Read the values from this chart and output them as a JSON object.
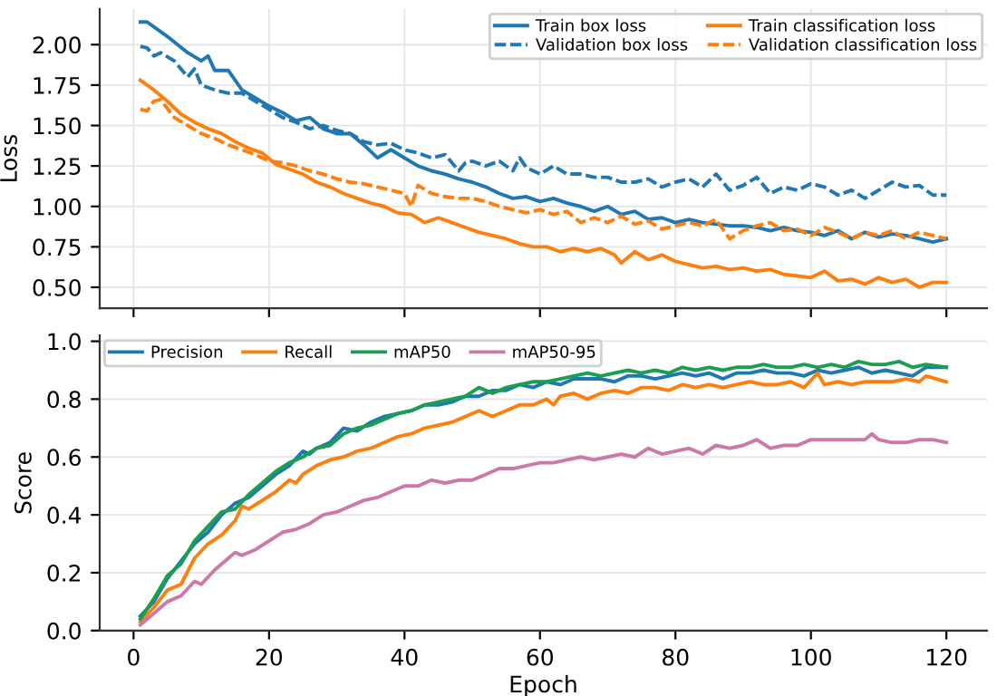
{
  "chart_data": [
    {
      "type": "line",
      "ylabel": "Loss",
      "xlim": [
        -5,
        126
      ],
      "xticks": [
        0,
        20,
        40,
        60,
        80,
        100,
        120
      ],
      "ylim": [
        0.37,
        2.22
      ],
      "yticks": [
        {
          "value": 0.5,
          "label": "0.50"
        },
        {
          "value": 0.75,
          "label": "0.75"
        },
        {
          "value": 1.0,
          "label": "1.00"
        },
        {
          "value": 1.25,
          "label": "1.25"
        },
        {
          "value": 1.5,
          "label": "1.50"
        },
        {
          "value": 1.75,
          "label": "1.75"
        },
        {
          "value": 2.0,
          "label": "2.00"
        }
      ],
      "tick_labels": "y",
      "grid": true,
      "legend": "top right",
      "series": [
        {
          "name": "Train box loss",
          "color": "#1f77b4",
          "line_style": "solid",
          "x": [
            1,
            2,
            5,
            8,
            10,
            11,
            12,
            14,
            16,
            20,
            22,
            24,
            26,
            28,
            30,
            32,
            34,
            36,
            38,
            40,
            42,
            44,
            46,
            48,
            50,
            52,
            54,
            56,
            58,
            60,
            62,
            64,
            66,
            68,
            70,
            72,
            74,
            76,
            78,
            80,
            82,
            84,
            86,
            88,
            90,
            92,
            94,
            96,
            98,
            100,
            102,
            104,
            106,
            108,
            110,
            112,
            114,
            116,
            118,
            120
          ],
          "values": [
            2.14,
            2.14,
            2.05,
            1.95,
            1.9,
            1.93,
            1.84,
            1.84,
            1.72,
            1.62,
            1.58,
            1.53,
            1.55,
            1.48,
            1.45,
            1.45,
            1.38,
            1.3,
            1.35,
            1.3,
            1.25,
            1.22,
            1.2,
            1.17,
            1.15,
            1.12,
            1.08,
            1.05,
            1.06,
            1.03,
            1.05,
            1.02,
            1.0,
            0.97,
            1.0,
            0.95,
            0.97,
            0.92,
            0.93,
            0.9,
            0.92,
            0.9,
            0.89,
            0.88,
            0.88,
            0.87,
            0.85,
            0.87,
            0.85,
            0.84,
            0.82,
            0.85,
            0.8,
            0.84,
            0.81,
            0.83,
            0.82,
            0.8,
            0.78,
            0.8
          ]
        },
        {
          "name": "Validation box loss",
          "color": "#1f77b4",
          "line_style": "dashed",
          "x": [
            1,
            2,
            3,
            4,
            6,
            8,
            9,
            10,
            12,
            14,
            16,
            18,
            20,
            22,
            24,
            26,
            28,
            30,
            32,
            34,
            36,
            38,
            40,
            42,
            44,
            46,
            48,
            49,
            50,
            52,
            54,
            56,
            57,
            58,
            60,
            62,
            64,
            66,
            68,
            70,
            72,
            74,
            76,
            78,
            80,
            82,
            84,
            86,
            88,
            90,
            92,
            94,
            96,
            98,
            100,
            102,
            104,
            106,
            108,
            110,
            112,
            114,
            116,
            118,
            120
          ],
          "values": [
            1.99,
            1.98,
            1.93,
            1.95,
            1.9,
            1.8,
            1.85,
            1.75,
            1.72,
            1.7,
            1.7,
            1.65,
            1.6,
            1.55,
            1.52,
            1.48,
            1.5,
            1.47,
            1.45,
            1.4,
            1.38,
            1.39,
            1.35,
            1.33,
            1.3,
            1.32,
            1.22,
            1.27,
            1.28,
            1.25,
            1.28,
            1.22,
            1.3,
            1.24,
            1.2,
            1.25,
            1.2,
            1.2,
            1.18,
            1.18,
            1.15,
            1.15,
            1.17,
            1.12,
            1.15,
            1.17,
            1.12,
            1.2,
            1.1,
            1.13,
            1.18,
            1.08,
            1.12,
            1.1,
            1.14,
            1.12,
            1.07,
            1.1,
            1.05,
            1.1,
            1.15,
            1.12,
            1.13,
            1.07,
            1.07
          ]
        },
        {
          "name": "Train classification loss",
          "color": "#ff7f0e",
          "line_style": "solid",
          "x": [
            1,
            3,
            5,
            7,
            9,
            11,
            13,
            15,
            17,
            19,
            21,
            23,
            25,
            27,
            29,
            31,
            33,
            35,
            37,
            39,
            41,
            43,
            45,
            47,
            49,
            51,
            53,
            55,
            57,
            59,
            61,
            63,
            65,
            67,
            69,
            71,
            72,
            74,
            76,
            78,
            80,
            82,
            84,
            86,
            88,
            90,
            92,
            94,
            96,
            98,
            100,
            102,
            104,
            106,
            108,
            110,
            112,
            114,
            116,
            118,
            120
          ],
          "values": [
            1.78,
            1.72,
            1.65,
            1.57,
            1.52,
            1.48,
            1.45,
            1.4,
            1.36,
            1.33,
            1.26,
            1.23,
            1.2,
            1.15,
            1.12,
            1.08,
            1.05,
            1.02,
            1.0,
            0.96,
            0.95,
            0.9,
            0.93,
            0.9,
            0.87,
            0.84,
            0.82,
            0.8,
            0.77,
            0.75,
            0.75,
            0.72,
            0.74,
            0.72,
            0.74,
            0.7,
            0.65,
            0.72,
            0.67,
            0.7,
            0.66,
            0.64,
            0.62,
            0.63,
            0.61,
            0.62,
            0.6,
            0.61,
            0.58,
            0.57,
            0.56,
            0.6,
            0.54,
            0.55,
            0.52,
            0.56,
            0.53,
            0.55,
            0.5,
            0.53,
            0.53
          ]
        },
        {
          "name": "Validation classification loss",
          "color": "#ff7f0e",
          "line_style": "dashed",
          "x": [
            1,
            2,
            3,
            4,
            6,
            8,
            10,
            12,
            14,
            16,
            18,
            20,
            22,
            24,
            26,
            28,
            30,
            32,
            34,
            36,
            38,
            40,
            41,
            42,
            44,
            46,
            48,
            50,
            52,
            54,
            56,
            58,
            60,
            62,
            64,
            66,
            68,
            70,
            72,
            74,
            76,
            78,
            80,
            82,
            84,
            86,
            88,
            90,
            92,
            94,
            96,
            98,
            100,
            102,
            104,
            106,
            108,
            110,
            112,
            114,
            116,
            118,
            120
          ],
          "values": [
            1.6,
            1.59,
            1.65,
            1.66,
            1.55,
            1.5,
            1.45,
            1.42,
            1.38,
            1.35,
            1.32,
            1.28,
            1.27,
            1.25,
            1.22,
            1.2,
            1.17,
            1.15,
            1.14,
            1.12,
            1.1,
            1.08,
            1.0,
            1.13,
            1.08,
            1.06,
            1.05,
            1.05,
            1.03,
            1.0,
            0.98,
            0.96,
            0.98,
            0.95,
            0.97,
            0.9,
            0.93,
            0.9,
            0.94,
            0.89,
            0.91,
            0.86,
            0.88,
            0.9,
            0.88,
            0.92,
            0.8,
            0.85,
            0.88,
            0.9,
            0.85,
            0.86,
            0.82,
            0.87,
            0.84,
            0.8,
            0.84,
            0.82,
            0.85,
            0.8,
            0.84,
            0.82,
            0.8
          ]
        }
      ]
    },
    {
      "type": "line",
      "xlabel": "Epoch",
      "ylabel": "Score",
      "xlim": [
        -5,
        126
      ],
      "xticks": [
        0,
        20,
        40,
        60,
        80,
        100,
        120
      ],
      "ylim": [
        0,
        1.02
      ],
      "yticks": [
        {
          "value": 0,
          "label": "0.0"
        },
        {
          "value": 0.2,
          "label": "0.2"
        },
        {
          "value": 0.4,
          "label": "0.4"
        },
        {
          "value": 0.6,
          "label": "0.6"
        },
        {
          "value": 0.8,
          "label": "0.8"
        },
        {
          "value": 1.0,
          "label": "1.0"
        }
      ],
      "grid": "y",
      "legend": "top left",
      "series": [
        {
          "name": "Precision",
          "color": "#1f77b4",
          "x": [
            1,
            3,
            5,
            7,
            9,
            11,
            13,
            15,
            17,
            19,
            21,
            23,
            25,
            26,
            27,
            29,
            31,
            33,
            35,
            37,
            39,
            41,
            43,
            45,
            47,
            49,
            51,
            53,
            55,
            57,
            59,
            61,
            63,
            65,
            67,
            69,
            71,
            73,
            75,
            77,
            79,
            81,
            83,
            85,
            87,
            89,
            91,
            93,
            95,
            97,
            99,
            101,
            103,
            105,
            107,
            109,
            111,
            113,
            115,
            117,
            120
          ],
          "values": [
            0.05,
            0.1,
            0.18,
            0.24,
            0.3,
            0.34,
            0.4,
            0.44,
            0.46,
            0.5,
            0.54,
            0.57,
            0.62,
            0.61,
            0.63,
            0.65,
            0.7,
            0.69,
            0.72,
            0.74,
            0.75,
            0.76,
            0.78,
            0.78,
            0.79,
            0.81,
            0.81,
            0.83,
            0.83,
            0.85,
            0.84,
            0.86,
            0.85,
            0.87,
            0.87,
            0.87,
            0.86,
            0.88,
            0.88,
            0.87,
            0.88,
            0.89,
            0.88,
            0.89,
            0.87,
            0.89,
            0.89,
            0.9,
            0.89,
            0.89,
            0.88,
            0.9,
            0.89,
            0.9,
            0.91,
            0.89,
            0.9,
            0.89,
            0.88,
            0.91,
            0.91
          ]
        },
        {
          "name": "Recall",
          "color": "#ff7f0e",
          "x": [
            1,
            3,
            5,
            7,
            9,
            11,
            13,
            15,
            16,
            17,
            19,
            21,
            23,
            24,
            25,
            27,
            29,
            31,
            33,
            35,
            37,
            39,
            41,
            43,
            45,
            47,
            49,
            51,
            53,
            55,
            57,
            59,
            61,
            62,
            63,
            65,
            67,
            69,
            71,
            73,
            75,
            77,
            79,
            81,
            83,
            85,
            87,
            89,
            91,
            93,
            95,
            97,
            99,
            101,
            102,
            104,
            106,
            108,
            110,
            112,
            114,
            116,
            117,
            120
          ],
          "values": [
            0.03,
            0.08,
            0.14,
            0.16,
            0.25,
            0.3,
            0.33,
            0.38,
            0.43,
            0.42,
            0.45,
            0.48,
            0.52,
            0.51,
            0.54,
            0.57,
            0.59,
            0.6,
            0.62,
            0.63,
            0.65,
            0.67,
            0.68,
            0.7,
            0.71,
            0.72,
            0.74,
            0.76,
            0.74,
            0.76,
            0.78,
            0.78,
            0.8,
            0.78,
            0.81,
            0.82,
            0.8,
            0.82,
            0.83,
            0.82,
            0.84,
            0.84,
            0.83,
            0.85,
            0.84,
            0.85,
            0.84,
            0.85,
            0.86,
            0.85,
            0.85,
            0.86,
            0.84,
            0.89,
            0.85,
            0.86,
            0.85,
            0.86,
            0.86,
            0.86,
            0.87,
            0.86,
            0.88,
            0.86
          ]
        },
        {
          "name": "mAP50",
          "color": "#1a9e50",
          "x": [
            1,
            3,
            5,
            7,
            9,
            11,
            13,
            15,
            17,
            19,
            21,
            23,
            25,
            27,
            29,
            31,
            33,
            35,
            37,
            39,
            41,
            43,
            45,
            47,
            49,
            51,
            53,
            55,
            57,
            59,
            61,
            63,
            65,
            67,
            69,
            71,
            73,
            75,
            77,
            79,
            81,
            83,
            85,
            87,
            89,
            91,
            93,
            95,
            97,
            99,
            101,
            103,
            105,
            107,
            109,
            111,
            113,
            115,
            117,
            120
          ],
          "values": [
            0.04,
            0.11,
            0.19,
            0.23,
            0.31,
            0.36,
            0.41,
            0.42,
            0.47,
            0.51,
            0.55,
            0.58,
            0.6,
            0.63,
            0.64,
            0.68,
            0.7,
            0.71,
            0.73,
            0.75,
            0.76,
            0.78,
            0.79,
            0.8,
            0.81,
            0.84,
            0.82,
            0.84,
            0.85,
            0.86,
            0.86,
            0.87,
            0.88,
            0.89,
            0.88,
            0.89,
            0.9,
            0.89,
            0.9,
            0.89,
            0.91,
            0.9,
            0.91,
            0.9,
            0.91,
            0.91,
            0.92,
            0.91,
            0.91,
            0.92,
            0.91,
            0.92,
            0.91,
            0.93,
            0.92,
            0.92,
            0.93,
            0.91,
            0.92,
            0.91
          ]
        },
        {
          "name": "mAP50-95",
          "color": "#cc79a7",
          "x": [
            1,
            3,
            5,
            7,
            9,
            10,
            12,
            14,
            15,
            16,
            18,
            20,
            22,
            24,
            26,
            28,
            30,
            32,
            34,
            36,
            38,
            40,
            42,
            44,
            46,
            48,
            50,
            52,
            54,
            56,
            58,
            60,
            62,
            64,
            66,
            68,
            70,
            72,
            74,
            76,
            78,
            80,
            82,
            84,
            86,
            88,
            90,
            92,
            94,
            96,
            98,
            100,
            102,
            104,
            106,
            108,
            109,
            110,
            112,
            114,
            116,
            118,
            120
          ],
          "values": [
            0.02,
            0.06,
            0.1,
            0.12,
            0.17,
            0.16,
            0.21,
            0.25,
            0.27,
            0.26,
            0.28,
            0.31,
            0.34,
            0.35,
            0.37,
            0.4,
            0.41,
            0.43,
            0.45,
            0.46,
            0.48,
            0.5,
            0.5,
            0.52,
            0.51,
            0.52,
            0.52,
            0.54,
            0.56,
            0.56,
            0.57,
            0.58,
            0.58,
            0.59,
            0.6,
            0.59,
            0.6,
            0.61,
            0.6,
            0.63,
            0.61,
            0.62,
            0.63,
            0.61,
            0.64,
            0.63,
            0.64,
            0.66,
            0.63,
            0.64,
            0.64,
            0.66,
            0.66,
            0.66,
            0.66,
            0.66,
            0.68,
            0.66,
            0.65,
            0.65,
            0.66,
            0.66,
            0.65
          ]
        }
      ]
    }
  ]
}
